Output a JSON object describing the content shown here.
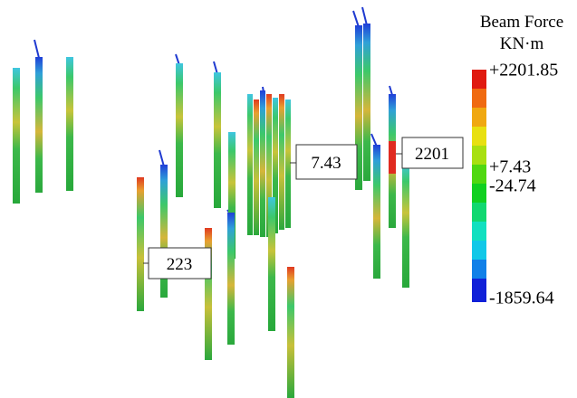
{
  "legend": {
    "title": "Beam Force",
    "unit": "KN·m",
    "labels": [
      "+2201.85",
      "+7.43",
      "-24.74",
      "-1859.64"
    ]
  },
  "callouts": [
    "7.43",
    "2201",
    "223"
  ]
}
